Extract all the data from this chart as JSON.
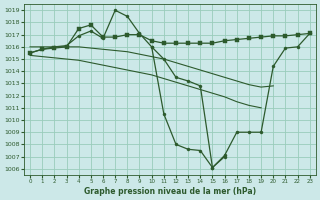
{
  "title": "Graphe pression niveau de la mer (hPa)",
  "background_color": "#cce8e8",
  "grid_color": "#99ccbb",
  "line_color": "#2d5a2d",
  "xlim": [
    -0.5,
    23.5
  ],
  "ylim": [
    1005.5,
    1019.5
  ],
  "xticks": [
    0,
    1,
    2,
    3,
    4,
    5,
    6,
    7,
    8,
    9,
    10,
    11,
    12,
    13,
    14,
    15,
    16,
    17,
    18,
    19,
    20,
    21,
    22,
    23
  ],
  "yticks": [
    1006,
    1007,
    1008,
    1009,
    1010,
    1011,
    1012,
    1013,
    1014,
    1015,
    1016,
    1017,
    1018,
    1019
  ],
  "line1_x": [
    0,
    1,
    2,
    3,
    4,
    5,
    6,
    7,
    8,
    9,
    10,
    11,
    12,
    13,
    14,
    15,
    16
  ],
  "line1_y": [
    1015.5,
    1015.8,
    1016.0,
    1016.1,
    1016.9,
    1017.3,
    1016.7,
    1019.0,
    1018.5,
    1017.1,
    1016.0,
    1015.0,
    1013.5,
    1013.2,
    1012.8,
    1006.1,
    1007.0
  ],
  "line2_x": [
    0,
    1,
    2,
    3,
    4,
    5,
    6,
    7,
    8,
    9,
    10,
    11,
    12,
    13,
    14,
    15,
    16,
    17,
    18,
    19,
    20,
    21,
    22,
    23
  ],
  "line2_y": [
    1015.5,
    1015.8,
    1015.9,
    1016.0,
    1017.5,
    1017.8,
    1016.8,
    1016.8,
    1017.0,
    1017.0,
    1016.5,
    1016.3,
    1016.3,
    1016.3,
    1016.3,
    1016.3,
    1016.5,
    1016.6,
    1016.7,
    1016.8,
    1016.9,
    1016.9,
    1017.0,
    1017.1
  ],
  "line3_x": [
    0,
    1,
    2,
    3,
    4,
    5,
    6,
    7,
    8,
    9,
    10,
    11,
    12,
    13,
    14,
    15,
    16,
    17,
    18,
    19,
    20
  ],
  "line3_y": [
    1016.0,
    1016.0,
    1016.0,
    1016.0,
    1016.0,
    1015.9,
    1015.8,
    1015.7,
    1015.6,
    1015.4,
    1015.2,
    1015.0,
    1014.7,
    1014.4,
    1014.1,
    1013.8,
    1013.5,
    1013.2,
    1012.9,
    1012.7,
    1012.8
  ],
  "line4_x": [
    0,
    1,
    2,
    3,
    4,
    5,
    6,
    7,
    8,
    9,
    10,
    11,
    12,
    13,
    14,
    15,
    16,
    17,
    18,
    19
  ],
  "line4_y": [
    1015.3,
    1015.2,
    1015.1,
    1015.0,
    1014.9,
    1014.7,
    1014.5,
    1014.3,
    1014.1,
    1013.9,
    1013.7,
    1013.4,
    1013.1,
    1012.8,
    1012.5,
    1012.2,
    1011.9,
    1011.5,
    1011.2,
    1011.0
  ],
  "line5_x": [
    10,
    11,
    12,
    13,
    14,
    15,
    16,
    17,
    18,
    19,
    20,
    21,
    22,
    23
  ],
  "line5_y": [
    1016.0,
    1010.5,
    1008.0,
    1007.6,
    1007.5,
    1006.1,
    1007.1,
    1009.0,
    1009.0,
    1009.0,
    1014.4,
    1015.9,
    1016.0,
    1017.1
  ]
}
